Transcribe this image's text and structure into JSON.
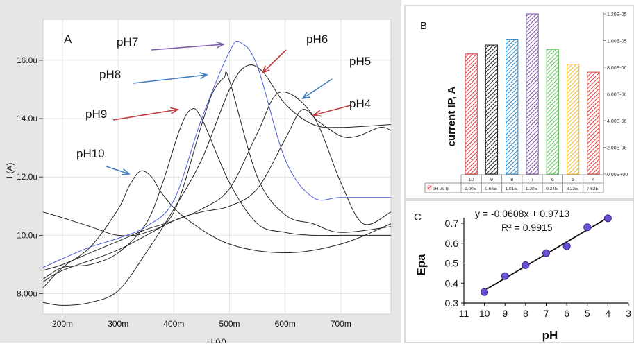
{
  "figure": {
    "panelA": {
      "label": "A",
      "ylabel": "I (A)",
      "xlabel": "U (V)",
      "yticks": [
        "8.00u",
        "10.0u",
        "12.0u",
        "14.0u",
        "16.0u"
      ],
      "xticks": [
        "200m",
        "300m",
        "400m",
        "500m",
        "600m",
        "700m"
      ],
      "annotations": [
        "pH7",
        "pH6",
        "pH5",
        "pH8",
        "pH9",
        "pH4",
        "pH10"
      ]
    },
    "panelB": {
      "label": "B",
      "ylabel": "current IP, A",
      "yticks": [
        "0.00E+00",
        "2.00E-06",
        "4.00E-06",
        "6.00E-06",
        "8.00E-06",
        "1.00E-05",
        "1.20E-05"
      ],
      "table_rowlabel": "pH vs Ip",
      "table_values": [
        "9.00E-",
        "9.66E-",
        "1.01E-",
        "1.20E-",
        "9.34E-",
        "8.22E-",
        "7.63E-"
      ]
    },
    "panelC": {
      "label": "C",
      "ylabel": "Epa",
      "xlabel": "pH",
      "equation": "y = -0.0608x + 0.9713",
      "r2": "R² = 0.9915",
      "yticks": [
        "0.3",
        "0.4",
        "0.5",
        "0.6",
        "0.7"
      ],
      "xticks": [
        "11",
        "10",
        "9",
        "8",
        "7",
        "6",
        "5",
        "4",
        "3"
      ]
    }
  },
  "chart_data": [
    {
      "type": "line",
      "title": "",
      "xlabel": "U (V)",
      "ylabel": "I (A)",
      "xlim": [
        0.165,
        0.79
      ],
      "ylim": [
        7.3,
        17.4
      ],
      "grid": true,
      "series": [
        {
          "name": "pH10",
          "color": "#222222",
          "x": [
            0.165,
            0.2,
            0.25,
            0.3,
            0.32,
            0.34,
            0.36,
            0.38,
            0.42,
            0.5,
            0.6,
            0.7,
            0.79
          ],
          "y": [
            8.2,
            8.9,
            9.6,
            10.9,
            11.7,
            12.2,
            12.0,
            11.4,
            10.6,
            9.7,
            9.4,
            9.7,
            10.4
          ]
        },
        {
          "name": "pH9",
          "color": "#222222",
          "x": [
            0.165,
            0.2,
            0.25,
            0.3,
            0.35,
            0.38,
            0.41,
            0.43,
            0.45,
            0.5,
            0.55,
            0.6,
            0.65,
            0.7,
            0.79
          ],
          "y": [
            8.5,
            8.9,
            9.0,
            9.4,
            10.4,
            11.8,
            13.6,
            14.3,
            14.0,
            11.8,
            10.4,
            10.1,
            10.0,
            10.0,
            10.0
          ]
        },
        {
          "name": "pH8",
          "color": "#222222",
          "x": [
            0.165,
            0.2,
            0.25,
            0.3,
            0.35,
            0.4,
            0.45,
            0.47,
            0.49,
            0.5,
            0.55,
            0.6,
            0.65,
            0.7,
            0.79
          ],
          "y": [
            10.8,
            10.6,
            10.3,
            10.0,
            10.1,
            10.8,
            13.8,
            14.9,
            15.4,
            15.3,
            12.0,
            10.7,
            10.4,
            10.1,
            10.3
          ]
        },
        {
          "name": "pH7",
          "color": "#4b5bd6",
          "x": [
            0.165,
            0.2,
            0.25,
            0.3,
            0.35,
            0.4,
            0.45,
            0.5,
            0.52,
            0.55,
            0.6,
            0.65,
            0.7,
            0.79
          ],
          "y": [
            8.9,
            9.2,
            9.6,
            9.9,
            10.3,
            11.2,
            14.0,
            16.3,
            16.6,
            15.8,
            12.6,
            11.3,
            11.3,
            11.3
          ]
        },
        {
          "name": "pH6",
          "color": "#222222",
          "x": [
            0.165,
            0.2,
            0.25,
            0.3,
            0.35,
            0.4,
            0.45,
            0.5,
            0.53,
            0.56,
            0.6,
            0.65,
            0.7,
            0.79
          ],
          "y": [
            7.7,
            7.6,
            7.7,
            8.1,
            9.4,
            10.9,
            12.6,
            15.0,
            15.8,
            15.6,
            14.5,
            13.8,
            13.7,
            13.8
          ]
        },
        {
          "name": "pH5",
          "color": "#222222",
          "x": [
            0.165,
            0.2,
            0.25,
            0.3,
            0.35,
            0.4,
            0.45,
            0.5,
            0.55,
            0.59,
            0.65,
            0.7,
            0.74,
            0.79
          ],
          "y": [
            8.8,
            9.0,
            9.4,
            9.8,
            10.2,
            10.5,
            10.9,
            11.6,
            13.5,
            14.9,
            14.1,
            11.8,
            10.4,
            10.8
          ]
        },
        {
          "name": "pH4",
          "color": "#222222",
          "x": [
            0.165,
            0.2,
            0.3,
            0.4,
            0.45,
            0.5,
            0.55,
            0.6,
            0.63,
            0.66,
            0.7,
            0.73,
            0.77,
            0.79
          ],
          "y": [
            8.4,
            8.8,
            9.5,
            10.5,
            10.8,
            11.0,
            11.6,
            13.3,
            14.3,
            13.9,
            13.4,
            13.4,
            13.7,
            13.6
          ]
        }
      ]
    },
    {
      "type": "bar",
      "title": "",
      "xlabel": "",
      "ylabel": "current IP, A",
      "categories": [
        "10",
        "9",
        "8",
        "7",
        "6",
        "5",
        "4"
      ],
      "values": [
        9e-06,
        9.66e-06,
        1.01e-05,
        1.2e-05,
        9.34e-06,
        8.22e-06,
        7.63e-06
      ],
      "colors": [
        "#e03c3c",
        "#222222",
        "#2e88cc",
        "#7b4fa8",
        "#5cc45a",
        "#f2b72c",
        "#e03c3c"
      ],
      "ylim": [
        0,
        1.2e-05
      ],
      "legend": "pH vs Ip"
    },
    {
      "type": "scatter",
      "title": "",
      "xlabel": "pH",
      "ylabel": "Epa",
      "x": [
        10,
        9,
        8,
        7,
        6,
        5,
        4
      ],
      "y": [
        0.355,
        0.435,
        0.49,
        0.55,
        0.585,
        0.68,
        0.725
      ],
      "xlim": [
        11,
        3
      ],
      "ylim": [
        0.3,
        0.75
      ],
      "trendline": {
        "slope": -0.0608,
        "intercept": 0.9713,
        "r2": 0.9915
      }
    }
  ]
}
